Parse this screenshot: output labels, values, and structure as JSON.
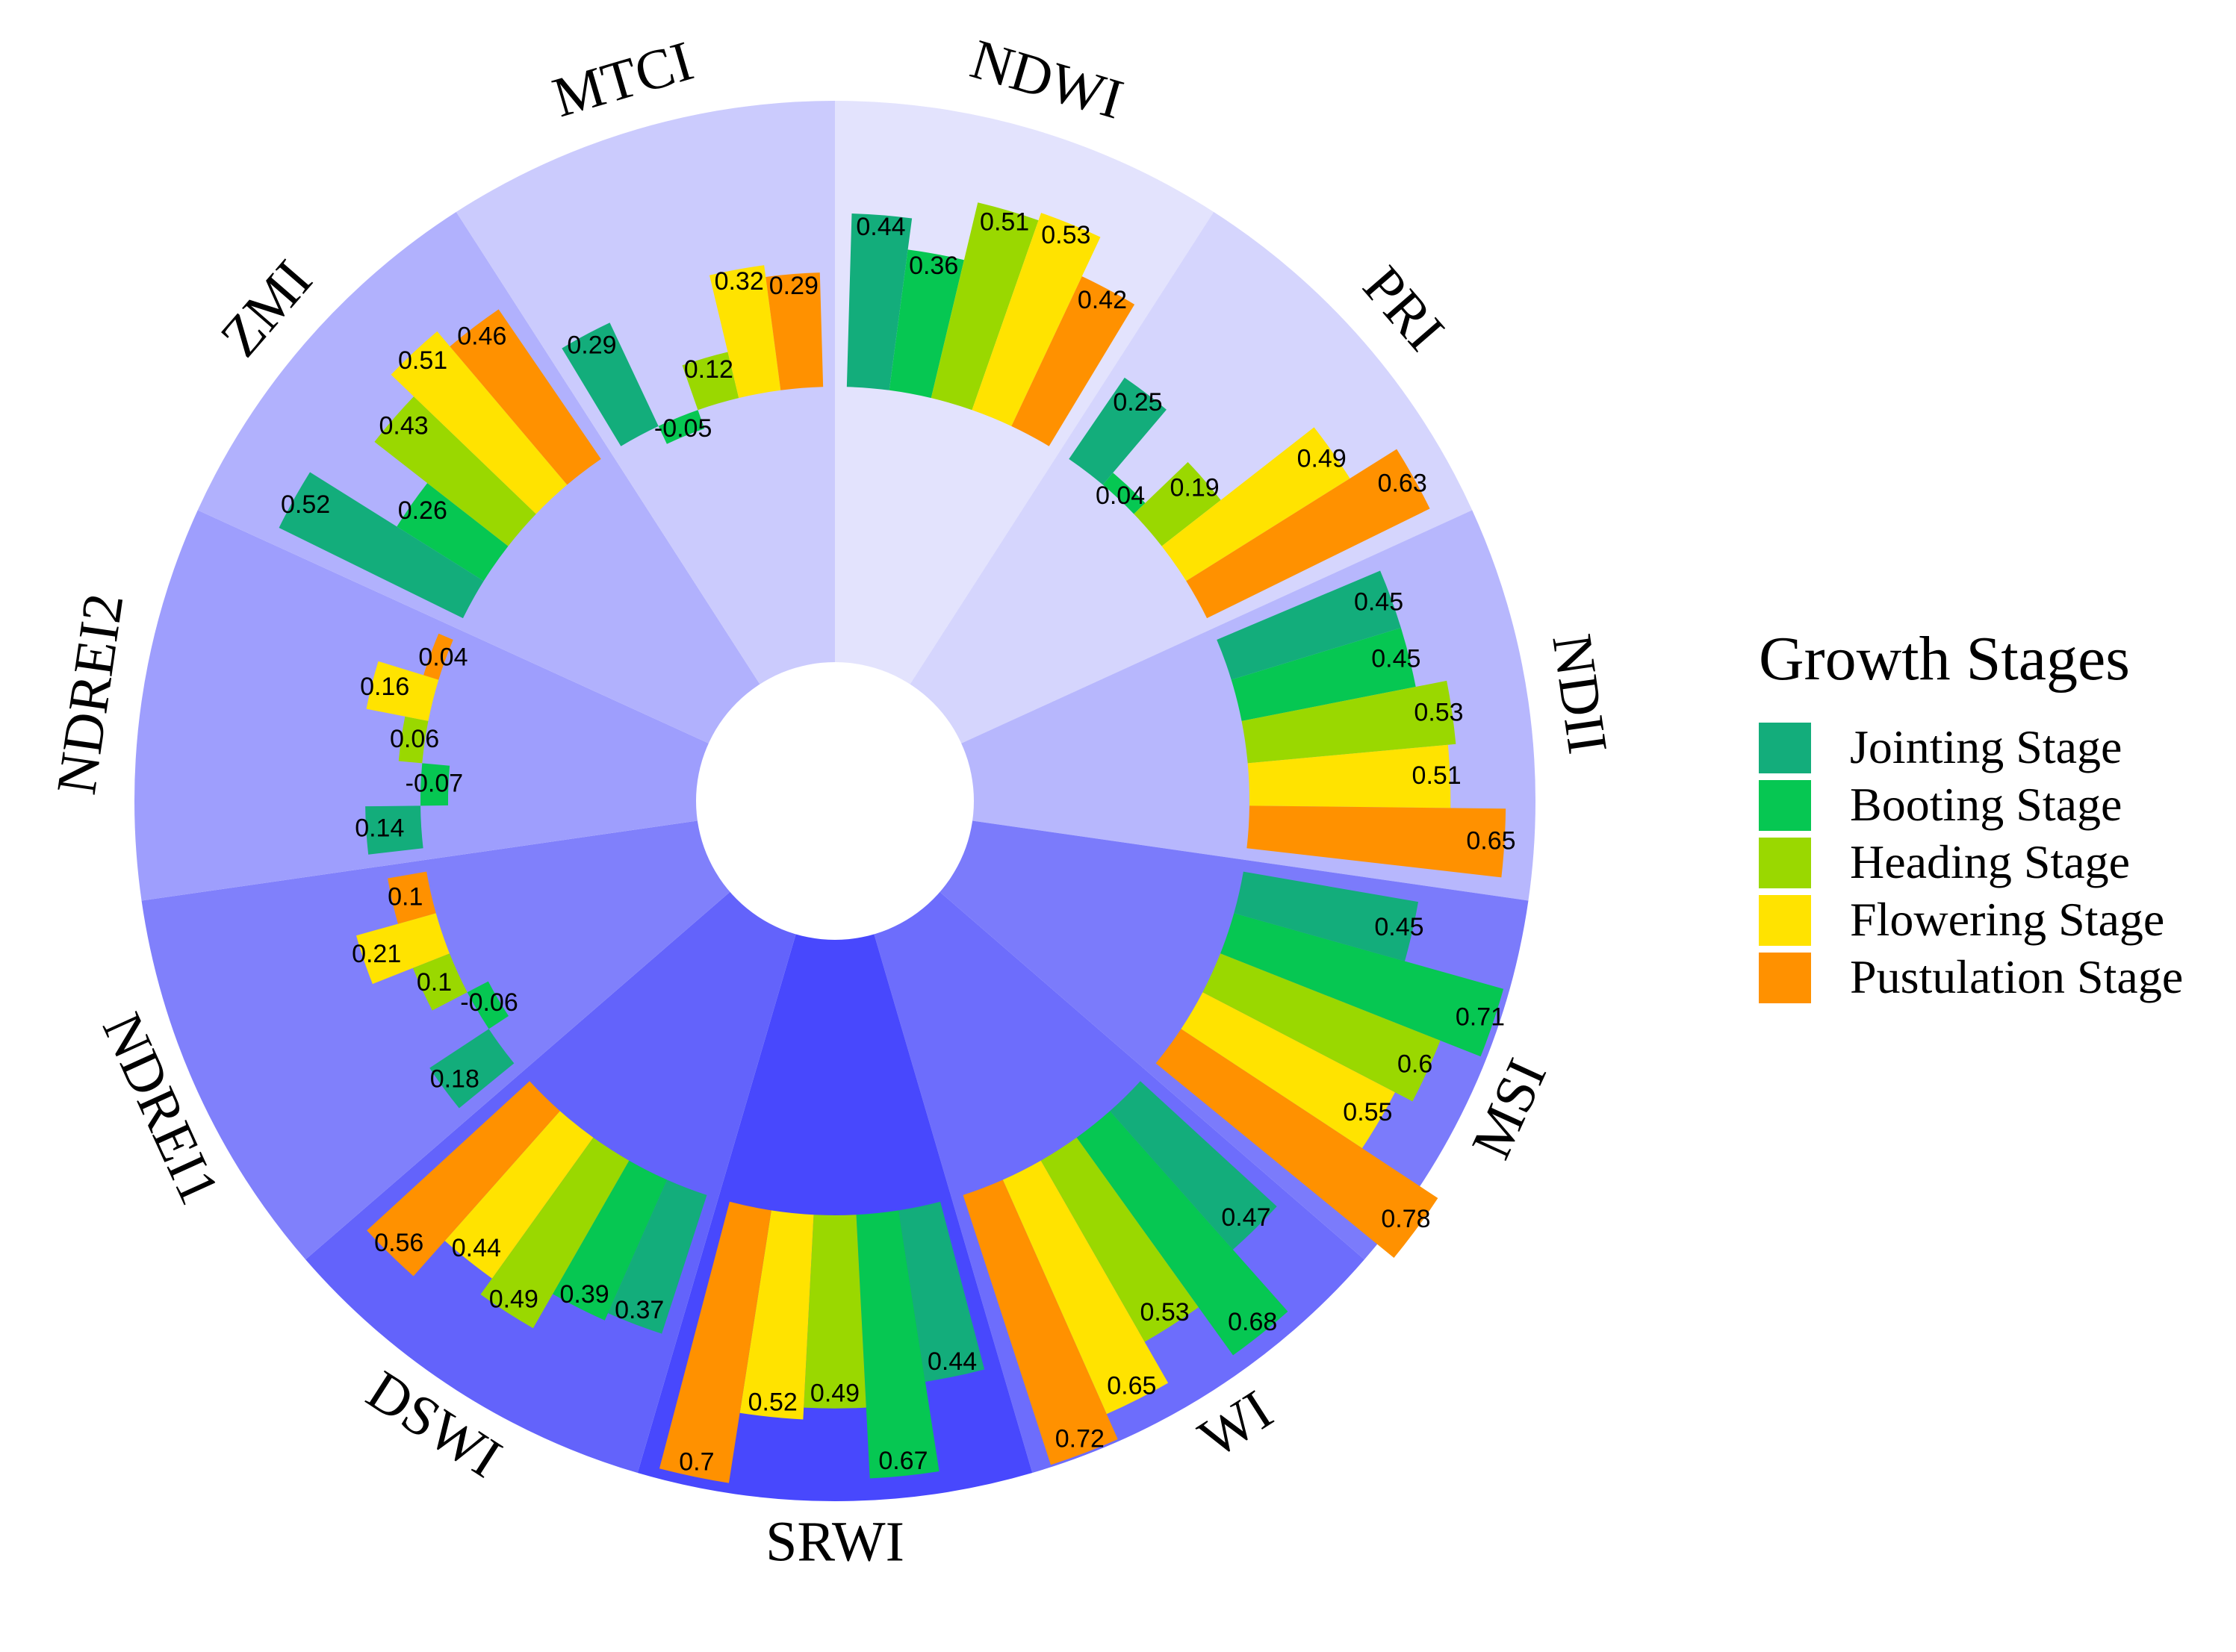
{
  "chart_data": {
    "type": "bar",
    "subtype": "circular-bar",
    "title": "",
    "categories": [
      "NDWI",
      "PRI",
      "NDII",
      "MSI",
      "WI",
      "SRWI",
      "DSWI",
      "NDREI1",
      "NDREI2",
      "ZMI",
      "MTCI"
    ],
    "series": [
      {
        "name": "Jointing Stage",
        "color": "#13ad7b",
        "values": [
          0.44,
          0.25,
          0.45,
          0.45,
          0.47,
          0.44,
          0.37,
          0.18,
          0.14,
          0.52,
          0.29
        ]
      },
      {
        "name": "Booting Stage",
        "color": "#06c752",
        "values": [
          0.36,
          0.04,
          0.45,
          0.71,
          0.68,
          0.67,
          0.39,
          -0.06,
          -0.07,
          0.26,
          -0.05
        ]
      },
      {
        "name": "Heading Stage",
        "color": "#9ad800",
        "values": [
          0.51,
          0.19,
          0.53,
          0.6,
          0.53,
          0.49,
          0.49,
          0.1,
          0.06,
          0.43,
          0.12
        ]
      },
      {
        "name": "Flowering Stage",
        "color": "#ffe300",
        "values": [
          0.53,
          0.49,
          0.51,
          0.55,
          0.65,
          0.52,
          0.44,
          0.21,
          0.16,
          0.51,
          0.32
        ]
      },
      {
        "name": "Pustulation Stage",
        "color": "#ff9100",
        "values": [
          0.42,
          0.63,
          0.65,
          0.78,
          0.72,
          0.7,
          0.56,
          0.1,
          0.04,
          0.46,
          0.29
        ]
      }
    ],
    "sector_colors": [
      "#e3e3fd",
      "#d5d5fd",
      "#b7b7fd",
      "#7b7bfb",
      "#6d6dfc",
      "#4848fd",
      "#6363fb",
      "#8080fb",
      "#9e9efd",
      "#b1b1fd",
      "#cbcbfd"
    ],
    "ylim": [
      -0.1,
      0.8
    ],
    "legend": {
      "title": "Growth Stages",
      "position": "right"
    }
  }
}
